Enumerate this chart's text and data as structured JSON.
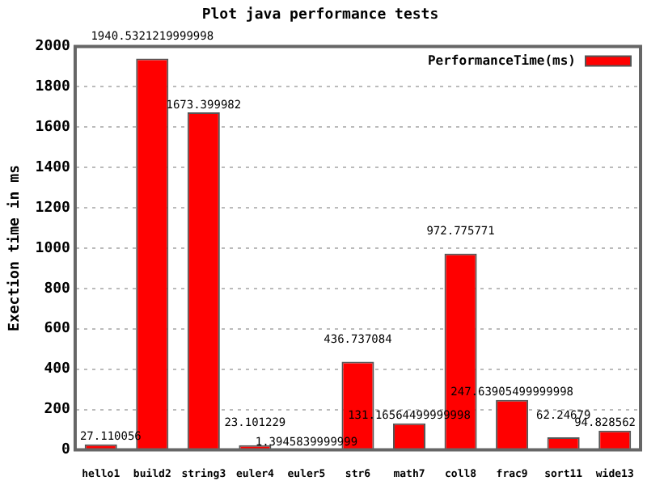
{
  "chart_data": {
    "type": "bar",
    "title": "Plot java performance tests",
    "ylabel": "Exection time in ms",
    "categories": [
      "hello1",
      "build2",
      "string3",
      "euler4",
      "euler5",
      "str6",
      "math7",
      "coll8",
      "frac9",
      "sort11",
      "wide13"
    ],
    "series": [
      {
        "name": "PerformanceTime(ms)",
        "color": "#ff0000",
        "values": [
          27.110056,
          1940.5321219999998,
          1673.399982,
          23.101229,
          1.3945839999999,
          436.737084,
          131.16564499999998,
          972.775771,
          247.63905499999998,
          62.24679,
          94.828562
        ],
        "value_labels": [
          "27.110056",
          "1940.5321219999998",
          "1673.399982",
          "23.101229",
          "1.3945839999999",
          "436.737084",
          "131.16564499999998",
          "972.775771",
          "247.63905499999998",
          "62.24679",
          "94.828562"
        ]
      }
    ],
    "ylim": [
      0,
      2000
    ],
    "yticks": [
      0,
      200,
      400,
      600,
      800,
      1000,
      1200,
      1400,
      1600,
      1800,
      2000
    ],
    "grid": "y",
    "legend": "top right"
  }
}
